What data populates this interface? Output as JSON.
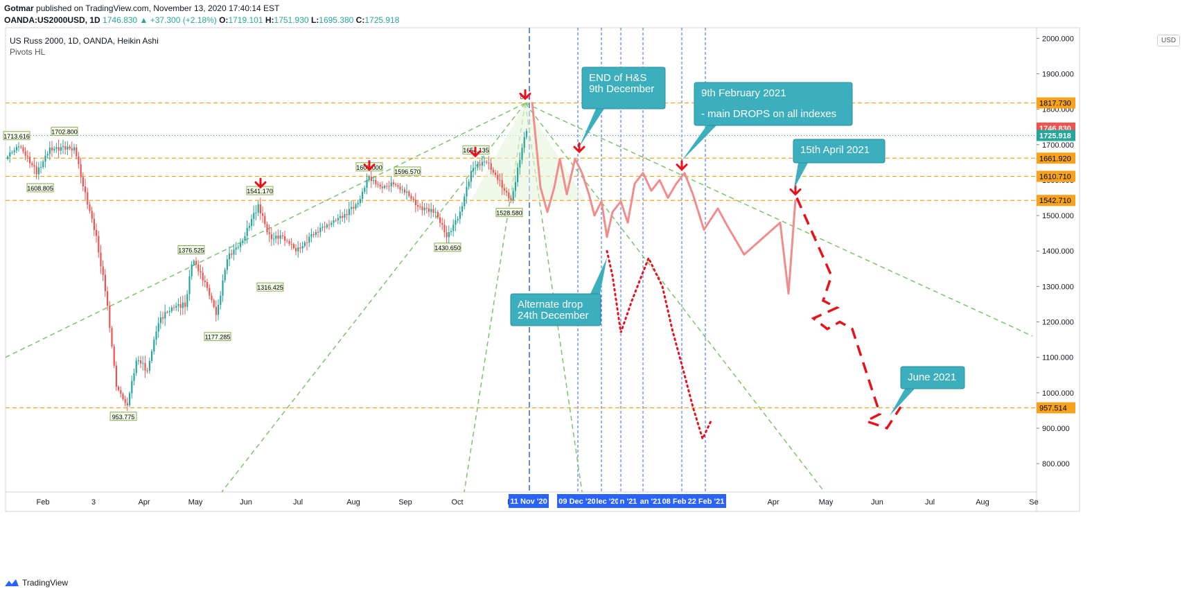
{
  "header": {
    "author": "Gotmar",
    "published_text": "published on TradingView.com, November 13, 2020 17:40:14 EST",
    "symbol_line": "OANDA:US2000USD, 1D",
    "last": "1746.830",
    "change": "+37.300 (+2.18%)",
    "o_label": "O:",
    "o_val": "1719.101",
    "h_label": "H:",
    "h_val": "1751.930",
    "l_label": "L:",
    "l_val": "1695.380",
    "c_label": "C:",
    "c_val": "1725.918"
  },
  "legend": {
    "title": "US Russ 2000, 1D, OANDA, Heikin Ashi",
    "indicator": "Pivots HL"
  },
  "currency_button": "USD",
  "footer": {
    "brand": "TradingView"
  },
  "colors": {
    "up": "#26a69a",
    "down": "#ef5350",
    "projection": "#f28b8b",
    "dashed_red": "#e8101b",
    "guide_green": "#7cc36b",
    "level_orange": "#f7a21b",
    "callout": "#3bafbd",
    "vline_blue": "#2962ff",
    "arrow": "#e8101b"
  },
  "chart_data": {
    "type": "candlestick",
    "title": "US Russ 2000, 1D, OANDA, Heikin Ashi",
    "ylim": [
      720,
      2030
    ],
    "y_ticks": [
      "2000.000",
      "1900.000",
      "1800.000",
      "1700.000",
      "1600.000",
      "1500.000",
      "1400.000",
      "1300.000",
      "1200.000",
      "1100.000",
      "1000.000",
      "900.000",
      "800.000"
    ],
    "y_tick_values": [
      2000,
      1900,
      1800,
      1700,
      1600,
      1500,
      1400,
      1300,
      1200,
      1100,
      1000,
      900,
      800
    ],
    "x_ticks": [
      "Feb",
      "3",
      "Apr",
      "May",
      "Jun",
      "Jul",
      "Aug",
      "Sep",
      "Oct",
      "N",
      "Apr",
      "May",
      "Jun",
      "Jul",
      "Aug",
      "Se"
    ],
    "x_highlight_labels": [
      "11 Nov '20",
      "09 Dec '20",
      "lec '20",
      "n '21",
      "an '21",
      "08 Feb",
      "22 Feb '21"
    ],
    "levels": [
      {
        "value": 1817.73,
        "label": "1817.730"
      },
      {
        "value": 1661.92,
        "label": "1661.920"
      },
      {
        "value": 1610.71,
        "label": "1610.710"
      },
      {
        "value": 1542.71,
        "label": "1542.710"
      },
      {
        "value": 957.514,
        "label": "957.514"
      }
    ],
    "price_tags": [
      {
        "value": 1746.83,
        "label": "1746.830",
        "color": "#ef5350"
      },
      {
        "value": 1725.918,
        "label": "1725.918",
        "color": "#26a69a"
      }
    ],
    "pivots": [
      {
        "label": "1713.616"
      },
      {
        "label": "1702.800"
      },
      {
        "label": "1608.805"
      },
      {
        "label": "953.775"
      },
      {
        "label": "1376.525"
      },
      {
        "label": "1177.285"
      },
      {
        "label": "1541.170"
      },
      {
        "label": "1316.425"
      },
      {
        "label": "1609.000"
      },
      {
        "label": "1596.570"
      },
      {
        "label": "1430.650"
      },
      {
        "label": "1654.135"
      },
      {
        "label": "1528.580"
      }
    ],
    "callouts": [
      {
        "lines": [
          "END of H&S",
          "9th December"
        ]
      },
      {
        "lines": [
          "9th February 2021",
          "- main DROPS on all indexes"
        ]
      },
      {
        "lines": [
          "15th April 2021"
        ]
      },
      {
        "lines": [
          "Alternate drop",
          "24th December"
        ]
      },
      {
        "lines": [
          "June 2021"
        ]
      }
    ],
    "top_marker": "844"
  }
}
